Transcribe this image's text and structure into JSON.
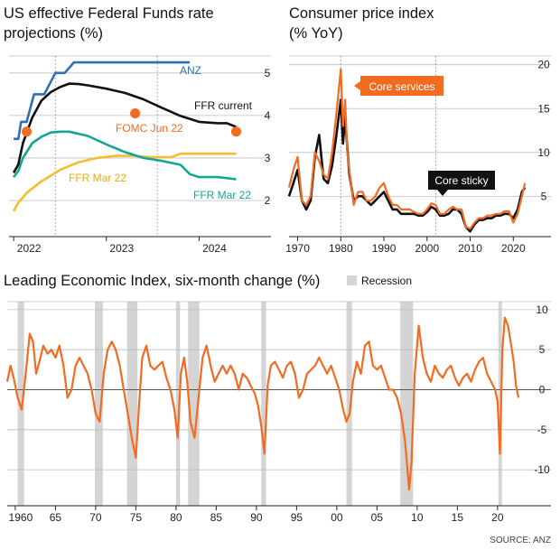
{
  "colors": {
    "anz": "#2f6fb5",
    "ffr_current": "#111111",
    "fomc": "#f26b21",
    "ffr_mar22_low": "#f6bd2e",
    "ffr_mar22_teal": "#16a595",
    "cpi_core_services": "#f26b21",
    "cpi_core_sticky": "#111111",
    "lei": "#f26b21",
    "recession": "#d4d4d4",
    "grid": "#bdbdbd"
  },
  "source": "SOURCE: ANZ",
  "chart_data": [
    {
      "type": "line",
      "title": "US effective Federal Funds rate projections (%)",
      "title_lines": [
        "US effective Federal Funds rate",
        "projections (%)"
      ],
      "xlim": [
        2021.95,
        2024.6
      ],
      "ylim": [
        1.15,
        5.4
      ],
      "x_ticks": [
        2022,
        2023,
        2024
      ],
      "x_tick_labels": [
        "2022",
        "2023",
        "2024"
      ],
      "y_ticks": [
        2,
        3,
        4,
        5
      ],
      "y_tick_labels": [
        "2",
        "3",
        "4",
        "5"
      ],
      "labels": {
        "anz": "ANZ",
        "ffr_current": "FFR current",
        "fomc": "FOMC Jun 22",
        "ffr_mar22_low": "FFR Mar 22",
        "ffr_mar22_teal": "FFR Mar 22"
      },
      "series": [
        {
          "name": "ANZ",
          "key": "anz",
          "x": [
            2022.0,
            2022.05,
            2022.08,
            2022.14,
            2022.22,
            2022.28,
            2022.33,
            2022.45,
            2022.55,
            2022.65,
            2022.75,
            2023.0,
            2023.5,
            2023.9
          ],
          "y": [
            3.45,
            3.45,
            3.85,
            3.85,
            4.5,
            4.5,
            4.5,
            5.0,
            5.0,
            5.25,
            5.25,
            5.25,
            5.25,
            5.25
          ]
        },
        {
          "name": "FFR current",
          "key": "ffr_current",
          "x": [
            2022.0,
            2022.05,
            2022.1,
            2022.2,
            2022.3,
            2022.4,
            2022.5,
            2022.6,
            2022.7,
            2022.8,
            2023.0,
            2023.2,
            2023.4,
            2023.6,
            2023.8,
            2024.0,
            2024.2,
            2024.3,
            2024.4
          ],
          "y": [
            2.65,
            2.85,
            3.35,
            3.95,
            4.35,
            4.55,
            4.67,
            4.75,
            4.74,
            4.71,
            4.63,
            4.53,
            4.38,
            4.18,
            3.99,
            3.85,
            3.82,
            3.82,
            3.73
          ]
        },
        {
          "name": "FFR Mar 22",
          "key": "ffr_mar22_teal",
          "x": [
            2022.0,
            2022.05,
            2022.1,
            2022.2,
            2022.3,
            2022.4,
            2022.5,
            2022.6,
            2022.8,
            2023.0,
            2023.2,
            2023.4,
            2023.6,
            2023.8,
            2023.9,
            2024.0,
            2024.2,
            2024.4
          ],
          "y": [
            2.55,
            2.7,
            3.0,
            3.35,
            3.5,
            3.6,
            3.62,
            3.62,
            3.52,
            3.32,
            3.14,
            3.0,
            2.93,
            2.84,
            2.62,
            2.55,
            2.55,
            2.5
          ]
        },
        {
          "name": "FFR Mar 22",
          "key": "ffr_mar22_low",
          "x": [
            2022.0,
            2022.05,
            2022.15,
            2022.3,
            2022.5,
            2022.7,
            2022.9,
            2023.1,
            2023.3,
            2023.5,
            2023.7,
            2023.8,
            2024.0,
            2024.2,
            2024.4
          ],
          "y": [
            1.75,
            1.95,
            2.2,
            2.45,
            2.72,
            2.9,
            3.0,
            3.05,
            3.05,
            3.02,
            3.02,
            3.1,
            3.1,
            3.1,
            3.1
          ]
        }
      ],
      "points": {
        "name": "FOMC Jun 22",
        "key": "fomc",
        "x": [
          2022.14,
          2023.31,
          2024.4
        ],
        "y": [
          3.62,
          4.05,
          3.62
        ]
      },
      "vlines": [
        2022.45,
        2023.55
      ]
    },
    {
      "type": "line",
      "title": "Consumer price index (% YoY)",
      "title_lines": [
        "Consumer price index",
        "(% YoY)"
      ],
      "xlim": [
        1968,
        2023.5
      ],
      "ylim": [
        0.4,
        21
      ],
      "x_ticks": [
        1970,
        1980,
        1990,
        2000,
        2010,
        2020
      ],
      "x_tick_labels": [
        "1970",
        "1980",
        "1990",
        "2000",
        "2010",
        "2020"
      ],
      "y_ticks": [
        5,
        10,
        15,
        20
      ],
      "y_tick_labels": [
        "5",
        "10",
        "15",
        "20"
      ],
      "series": [
        {
          "name": "Core services",
          "key": "cpi_core_services",
          "x": [
            1968,
            1969,
            1970,
            1971,
            1972,
            1973,
            1974,
            1975,
            1976,
            1977,
            1978,
            1979,
            1980,
            1980.5,
            1981,
            1981.5,
            1982,
            1983,
            1984,
            1985,
            1986,
            1987,
            1988,
            1989,
            1990,
            1991,
            1992,
            1993,
            1994,
            1995,
            1996,
            1997,
            1998,
            1999,
            2000,
            2001,
            2002,
            2003,
            2004,
            2005,
            2006,
            2007,
            2008,
            2009,
            2010,
            2011,
            2012,
            2013,
            2014,
            2015,
            2016,
            2017,
            2018,
            2019,
            2020,
            2021,
            2022,
            2022.7
          ],
          "y": [
            6.0,
            8.0,
            9.5,
            4.5,
            4.0,
            5.0,
            10.0,
            9.0,
            7.5,
            7.0,
            10.0,
            14.5,
            19.5,
            13.0,
            16.0,
            10.0,
            8.0,
            4.0,
            5.5,
            5.5,
            4.5,
            4.5,
            5.0,
            6.0,
            6.5,
            5.0,
            4.0,
            4.0,
            3.5,
            3.5,
            3.5,
            3.2,
            3.0,
            3.0,
            3.5,
            4.2,
            4.0,
            3.0,
            3.0,
            3.5,
            3.8,
            3.5,
            3.5,
            1.5,
            1.3,
            2.0,
            2.5,
            2.5,
            2.8,
            2.8,
            3.0,
            3.0,
            3.3,
            3.3,
            2.0,
            3.0,
            5.0,
            6.5
          ]
        },
        {
          "name": "Core sticky",
          "key": "cpi_core_sticky",
          "x": [
            1968,
            1969,
            1970,
            1971,
            1972,
            1973,
            1974,
            1975,
            1976,
            1977,
            1978,
            1979,
            1980,
            1980.5,
            1981,
            1981.5,
            1982,
            1983,
            1984,
            1985,
            1986,
            1987,
            1988,
            1989,
            1990,
            1991,
            1992,
            1993,
            1994,
            1995,
            1996,
            1997,
            1998,
            1999,
            2000,
            2001,
            2002,
            2003,
            2004,
            2005,
            2006,
            2007,
            2008,
            2009,
            2010,
            2011,
            2012,
            2013,
            2014,
            2015,
            2016,
            2017,
            2018,
            2019,
            2020,
            2021,
            2022,
            2022.7
          ],
          "y": [
            5.0,
            6.5,
            8.0,
            4.5,
            3.5,
            4.5,
            9.5,
            12.0,
            7.0,
            6.5,
            8.5,
            12.0,
            16.0,
            11.0,
            14.0,
            10.5,
            7.5,
            4.5,
            5.0,
            5.0,
            4.5,
            4.0,
            4.5,
            5.0,
            5.5,
            4.5,
            3.5,
            3.5,
            3.0,
            3.0,
            3.0,
            3.0,
            2.8,
            2.8,
            3.2,
            3.8,
            3.5,
            2.8,
            2.8,
            3.0,
            3.5,
            3.5,
            3.0,
            1.5,
            1.0,
            1.8,
            2.3,
            2.3,
            2.5,
            2.5,
            2.8,
            2.8,
            3.0,
            3.0,
            2.5,
            3.5,
            5.5,
            6.0
          ]
        }
      ],
      "labels": {
        "cpi_core_services": "Core services",
        "cpi_core_sticky": "Core sticky"
      },
      "vlines": [
        1980,
        2002
      ]
    },
    {
      "type": "line",
      "title": "Leading Economic Index, six-month change (%)",
      "legend": "Recession",
      "xlim": [
        1959,
        2023.5
      ],
      "ylim": [
        -14.5,
        11
      ],
      "x_ticks": [
        1960,
        1965,
        1970,
        1975,
        1980,
        1985,
        1990,
        1995,
        2000,
        2005,
        2010,
        2015,
        2020
      ],
      "x_tick_labels": [
        "1960",
        "65",
        "70",
        "75",
        "80",
        "85",
        "90",
        "95",
        "00",
        "05",
        "10",
        "15",
        "20"
      ],
      "y_ticks": [
        -10,
        -5,
        0,
        5,
        10
      ],
      "y_tick_labels": [
        "-10",
        "-5",
        "0",
        "5",
        "10"
      ],
      "recessions": [
        [
          1960.3,
          1961.1
        ],
        [
          1969.9,
          1970.9
        ],
        [
          1973.9,
          1975.2
        ],
        [
          1980.0,
          1980.5
        ],
        [
          1981.5,
          1982.9
        ],
        [
          1990.6,
          1991.2
        ],
        [
          2001.2,
          2001.9
        ],
        [
          2007.9,
          2009.5
        ],
        [
          2020.1,
          2020.4
        ]
      ],
      "series": [
        {
          "name": "Leading Economic Index",
          "key": "lei",
          "x": [
            1959.0,
            1959.4,
            1959.8,
            1960.3,
            1960.8,
            1961.3,
            1961.8,
            1962.2,
            1962.6,
            1963.0,
            1963.5,
            1964.0,
            1964.5,
            1965.0,
            1965.5,
            1966.0,
            1966.5,
            1967.0,
            1967.5,
            1968.0,
            1968.5,
            1969.0,
            1969.5,
            1970.0,
            1970.5,
            1971.0,
            1971.5,
            1972.0,
            1972.5,
            1973.0,
            1973.5,
            1974.0,
            1974.5,
            1975.0,
            1975.4,
            1975.8,
            1976.3,
            1976.8,
            1977.3,
            1977.8,
            1978.3,
            1978.8,
            1979.3,
            1979.8,
            1980.2,
            1980.6,
            1981.0,
            1981.4,
            1981.8,
            1982.3,
            1982.8,
            1983.3,
            1983.8,
            1984.3,
            1984.8,
            1985.3,
            1985.8,
            1986.3,
            1986.8,
            1987.3,
            1987.8,
            1988.3,
            1988.8,
            1989.3,
            1989.8,
            1990.2,
            1990.6,
            1991.0,
            1991.4,
            1991.8,
            1992.3,
            1992.8,
            1993.3,
            1993.8,
            1994.3,
            1994.8,
            1995.3,
            1995.8,
            1996.3,
            1996.8,
            1997.3,
            1997.8,
            1998.3,
            1998.8,
            1999.3,
            1999.8,
            2000.3,
            2000.8,
            2001.2,
            2001.6,
            2002.0,
            2002.5,
            2003.0,
            2003.5,
            2004.0,
            2004.5,
            2005.0,
            2005.5,
            2006.0,
            2006.5,
            2007.0,
            2007.5,
            2008.0,
            2008.5,
            2009.0,
            2009.3,
            2009.7,
            2010.2,
            2010.7,
            2011.2,
            2011.7,
            2012.2,
            2012.7,
            2013.2,
            2013.7,
            2014.2,
            2014.7,
            2015.2,
            2015.7,
            2016.2,
            2016.7,
            2017.2,
            2017.7,
            2018.2,
            2018.7,
            2019.2,
            2019.7,
            2020.0,
            2020.3,
            2020.6,
            2020.9,
            2021.3,
            2021.7,
            2022.0,
            2022.3,
            2022.6
          ],
          "y": [
            1.0,
            3.0,
            1.5,
            -1.0,
            -2.5,
            2.0,
            7.0,
            6.0,
            2.0,
            3.5,
            5.5,
            4.5,
            5.0,
            4.0,
            5.5,
            3.0,
            -1.0,
            0.0,
            3.0,
            4.0,
            3.0,
            2.0,
            0.0,
            -3.0,
            -4.0,
            2.0,
            5.0,
            6.0,
            5.0,
            3.0,
            0.0,
            -3.0,
            -6.0,
            -8.5,
            -2.0,
            4.0,
            5.5,
            3.0,
            2.5,
            3.0,
            3.5,
            1.5,
            0.0,
            -2.5,
            -6.0,
            2.0,
            4.0,
            1.0,
            -4.0,
            -6.0,
            -1.0,
            4.0,
            5.5,
            3.0,
            1.0,
            2.0,
            3.0,
            2.0,
            3.0,
            2.0,
            0.0,
            2.0,
            1.5,
            0.5,
            -0.5,
            -2.0,
            -4.5,
            -8.0,
            0.5,
            3.0,
            3.5,
            2.5,
            1.5,
            3.0,
            3.5,
            2.0,
            -1.0,
            0.0,
            2.0,
            2.5,
            3.0,
            4.0,
            3.0,
            2.0,
            3.0,
            1.5,
            0.0,
            -2.5,
            -4.0,
            -3.0,
            1.0,
            3.5,
            2.0,
            5.5,
            6.0,
            3.0,
            2.5,
            3.0,
            1.5,
            0.0,
            0.0,
            -1.0,
            -3.0,
            -6.5,
            -12.5,
            -9.0,
            2.0,
            8.0,
            4.0,
            2.0,
            1.0,
            3.0,
            2.0,
            1.5,
            2.5,
            3.0,
            1.5,
            0.5,
            1.5,
            2.0,
            1.0,
            2.5,
            3.5,
            4.0,
            2.0,
            1.0,
            0.0,
            -1.5,
            -8.0,
            5.0,
            9.0,
            8.0,
            5.5,
            3.5,
            0.5,
            -1.0
          ]
        }
      ]
    }
  ]
}
